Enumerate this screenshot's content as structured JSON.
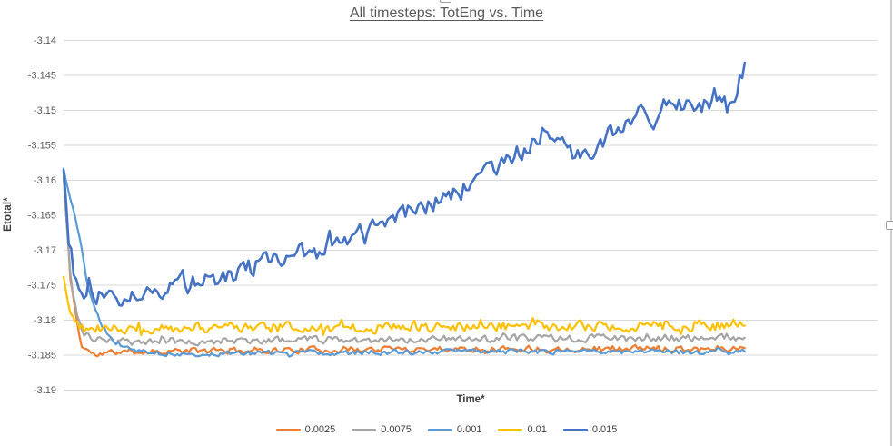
{
  "chart": {
    "title_color": "#595959",
    "gridline_color": "#d9d9d9",
    "tick_color": "#595959",
    "axis_title_color": "#3b3b3b",
    "legend_text_color": "#404040",
    "background": "#ffffff"
  },
  "chart_data": {
    "type": "line",
    "title": "All timesteps: TotEng vs. Time",
    "xlabel": "Time*",
    "ylabel": "Etotal*",
    "ylim": [
      -3.19,
      -3.14
    ],
    "ytick_step": 0.005,
    "yticks": [
      "-3.14",
      "-3.145",
      "-3.15",
      "-3.155",
      "-3.16",
      "-3.165",
      "-3.17",
      "-3.175",
      "-3.18",
      "-3.185",
      "-3.19"
    ],
    "x_domain": [
      0,
      1
    ],
    "xlim": [
      0,
      1.195
    ],
    "x_tick_labels_visible": false,
    "grid": "horizontal",
    "legend_position": "bottom-center",
    "series": [
      {
        "name": "0.0025",
        "color": "#ED7D31",
        "points": 300,
        "seed": 11,
        "noise_amp": 0.00048,
        "spike_p": 0.04,
        "spike_mult": 1.7,
        "width": 2.2,
        "trend": [
          [
            0,
            -3.1595
          ],
          [
            0.01,
            -3.174
          ],
          [
            0.025,
            -3.1835
          ],
          [
            0.045,
            -3.185
          ],
          [
            0.08,
            -3.1845
          ],
          [
            0.5,
            -3.1841
          ],
          [
            1,
            -3.184
          ]
        ]
      },
      {
        "name": "0.0075",
        "color": "#A5A5A5",
        "points": 300,
        "seed": 23,
        "noise_amp": 0.00055,
        "spike_p": 0.04,
        "spike_mult": 1.7,
        "width": 2.2,
        "trend": [
          [
            0,
            -3.1598
          ],
          [
            0.012,
            -3.176
          ],
          [
            0.028,
            -3.1822
          ],
          [
            0.06,
            -3.1831
          ],
          [
            0.5,
            -3.1827
          ],
          [
            1,
            -3.1825
          ]
        ]
      },
      {
        "name": "0.001",
        "color": "#5B9BD5",
        "points": 300,
        "seed": 37,
        "noise_amp": 0.00038,
        "spike_p": 0.03,
        "spike_mult": 1.6,
        "width": 2.2,
        "trend": [
          [
            0,
            -3.1583
          ],
          [
            0.02,
            -3.1665
          ],
          [
            0.035,
            -3.1748
          ],
          [
            0.052,
            -3.18
          ],
          [
            0.07,
            -3.1828
          ],
          [
            0.1,
            -3.1842
          ],
          [
            0.15,
            -3.1848
          ],
          [
            0.6,
            -3.1845
          ],
          [
            1,
            -3.1845
          ]
        ]
      },
      {
        "name": "0.01",
        "color": "#FFC000",
        "points": 300,
        "seed": 51,
        "noise_amp": 0.0008,
        "spike_p": 0.06,
        "spike_mult": 1.9,
        "width": 2.2,
        "trend": [
          [
            0,
            -3.1738
          ],
          [
            0.012,
            -3.1798
          ],
          [
            0.03,
            -3.1812
          ],
          [
            0.5,
            -3.1809
          ],
          [
            1,
            -3.1808
          ]
        ]
      },
      {
        "name": "0.015",
        "color": "#4472C4",
        "points": 270,
        "seed": 77,
        "noise_amp": 0.0015,
        "spike_p": 0.07,
        "spike_mult": 1.8,
        "width": 2.6,
        "trend": [
          [
            0,
            -3.1585
          ],
          [
            0.007,
            -3.168
          ],
          [
            0.02,
            -3.1757
          ],
          [
            0.06,
            -3.1763
          ],
          [
            0.11,
            -3.1766
          ],
          [
            0.168,
            -3.1745
          ],
          [
            0.235,
            -3.1736
          ],
          [
            0.302,
            -3.1716
          ],
          [
            0.369,
            -3.17
          ],
          [
            0.436,
            -3.1676
          ],
          [
            0.463,
            -3.1655
          ],
          [
            0.517,
            -3.1645
          ],
          [
            0.57,
            -3.1624
          ],
          [
            0.624,
            -3.1589
          ],
          [
            0.65,
            -3.1577
          ],
          [
            0.705,
            -3.1531
          ],
          [
            0.745,
            -3.1547
          ],
          [
            0.779,
            -3.1568
          ],
          [
            0.812,
            -3.1521
          ],
          [
            0.839,
            -3.1502
          ],
          [
            0.866,
            -3.1521
          ],
          [
            0.893,
            -3.149
          ],
          [
            0.933,
            -3.1496
          ],
          [
            0.973,
            -3.1481
          ],
          [
            0.989,
            -3.1472
          ],
          [
            1,
            -3.1432
          ]
        ]
      }
    ]
  },
  "selection": {
    "border_visible": true,
    "handles": [
      "top-center",
      "right-middle"
    ]
  },
  "geometry_note": "plot area left 70, right 966, top 44.5, bottom 429.5 px"
}
